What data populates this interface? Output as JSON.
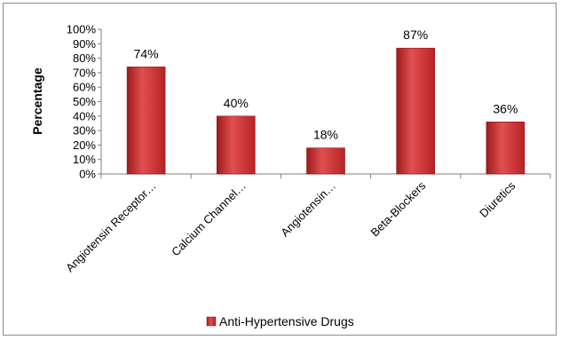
{
  "chart_data": {
    "type": "bar",
    "title": "",
    "xlabel": "",
    "ylabel": "Percentage",
    "ylim": [
      0,
      100
    ],
    "yticks": [
      "0%",
      "10%",
      "20%",
      "30%",
      "40%",
      "50%",
      "60%",
      "70%",
      "80%",
      "90%",
      "100%"
    ],
    "categories": [
      "Angiotensin Receptor…",
      "Calcium Channel…",
      "Angiotensin…",
      "Beta-Blockers",
      "Diuretics"
    ],
    "series": [
      {
        "name": "Anti-Hypertensive Drugs",
        "values": [
          74,
          40,
          18,
          87,
          36
        ],
        "data_labels": [
          "74%",
          "40%",
          "18%",
          "87%",
          "36%"
        ]
      }
    ],
    "colors": {
      "bar_fill": "#c0292b",
      "bar_highlight": "#e85a5a",
      "bar_edge": "#8e1416",
      "axis": "#7f7f7f"
    },
    "grid": false,
    "legend_position": "bottom"
  }
}
